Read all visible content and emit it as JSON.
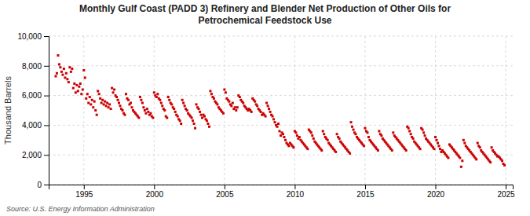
{
  "chart_data": {
    "type": "scatter",
    "title": "Monthly Gulf Coast (PADD 3) Refinery and Blender Net Production of Other Oils for\nPetrochemical Feedstock Use",
    "y_label": "Thousand Barrels",
    "annotations": [
      "Source: U.S. Energy Information Administration"
    ],
    "color": "#cc0000",
    "marker": "square",
    "grid": true,
    "xlim": [
      1992.5,
      2025.5
    ],
    "ylim": [
      0,
      10000
    ],
    "xticks": [
      1995,
      2000,
      2005,
      2010,
      2015,
      2020,
      2025
    ],
    "yticks": [
      0,
      {
        "value": 2000,
        "label": "2,000"
      },
      {
        "value": 4000,
        "label": "4,000"
      },
      {
        "value": 6000,
        "label": "6,000"
      },
      {
        "value": 8000,
        "label": "8,000"
      },
      {
        "value": 10000,
        "label": "10,000"
      }
    ],
    "x": [
      1993.0,
      1993.083,
      1993.167,
      1993.25,
      1993.333,
      1993.417,
      1993.5,
      1993.583,
      1993.667,
      1993.75,
      1993.833,
      1993.917,
      1994.0,
      1994.083,
      1994.167,
      1994.25,
      1994.333,
      1994.417,
      1994.5,
      1994.583,
      1994.667,
      1994.75,
      1994.833,
      1994.917,
      1995.0,
      1995.083,
      1995.167,
      1995.25,
      1995.333,
      1995.417,
      1995.5,
      1995.583,
      1995.667,
      1995.75,
      1995.833,
      1995.917,
      1996.0,
      1996.083,
      1996.167,
      1996.25,
      1996.333,
      1996.417,
      1996.5,
      1996.583,
      1996.667,
      1996.75,
      1996.833,
      1996.917,
      1997.0,
      1997.083,
      1997.167,
      1997.25,
      1997.333,
      1997.417,
      1997.5,
      1997.583,
      1997.667,
      1997.75,
      1997.833,
      1997.917,
      1998.0,
      1998.083,
      1998.167,
      1998.25,
      1998.333,
      1998.417,
      1998.5,
      1998.583,
      1998.667,
      1998.75,
      1998.833,
      1998.917,
      1999.0,
      1999.083,
      1999.167,
      1999.25,
      1999.333,
      1999.417,
      1999.5,
      1999.583,
      1999.667,
      1999.75,
      1999.833,
      1999.917,
      2000.0,
      2000.083,
      2000.167,
      2000.25,
      2000.333,
      2000.417,
      2000.5,
      2000.583,
      2000.667,
      2000.75,
      2000.833,
      2000.917,
      2001.0,
      2001.083,
      2001.167,
      2001.25,
      2001.333,
      2001.417,
      2001.5,
      2001.583,
      2001.667,
      2001.75,
      2001.833,
      2001.917,
      2002.0,
      2002.083,
      2002.167,
      2002.25,
      2002.333,
      2002.417,
      2002.5,
      2002.583,
      2002.667,
      2002.75,
      2002.833,
      2002.917,
      2003.0,
      2003.083,
      2003.167,
      2003.25,
      2003.333,
      2003.417,
      2003.5,
      2003.583,
      2003.667,
      2003.75,
      2003.833,
      2003.917,
      2004.0,
      2004.083,
      2004.167,
      2004.25,
      2004.333,
      2004.417,
      2004.5,
      2004.583,
      2004.667,
      2004.75,
      2004.833,
      2004.917,
      2005.0,
      2005.083,
      2005.167,
      2005.25,
      2005.333,
      2005.417,
      2005.5,
      2005.583,
      2005.667,
      2005.75,
      2005.833,
      2005.917,
      2006.0,
      2006.083,
      2006.167,
      2006.25,
      2006.333,
      2006.417,
      2006.5,
      2006.583,
      2006.667,
      2006.75,
      2006.833,
      2006.917,
      2007.0,
      2007.083,
      2007.167,
      2007.25,
      2007.333,
      2007.417,
      2007.5,
      2007.583,
      2007.667,
      2007.75,
      2007.833,
      2007.917,
      2008.0,
      2008.083,
      2008.167,
      2008.25,
      2008.333,
      2008.417,
      2008.5,
      2008.583,
      2008.667,
      2008.75,
      2008.833,
      2008.917,
      2009.0,
      2009.083,
      2009.167,
      2009.25,
      2009.333,
      2009.417,
      2009.5,
      2009.583,
      2009.667,
      2009.75,
      2009.833,
      2009.917,
      2010.0,
      2010.083,
      2010.167,
      2010.25,
      2010.333,
      2010.417,
      2010.5,
      2010.583,
      2010.667,
      2010.75,
      2010.833,
      2010.917,
      2011.0,
      2011.083,
      2011.167,
      2011.25,
      2011.333,
      2011.417,
      2011.5,
      2011.583,
      2011.667,
      2011.75,
      2011.833,
      2011.917,
      2012.0,
      2012.083,
      2012.167,
      2012.25,
      2012.333,
      2012.417,
      2012.5,
      2012.583,
      2012.667,
      2012.75,
      2012.833,
      2012.917,
      2013.0,
      2013.083,
      2013.167,
      2013.25,
      2013.333,
      2013.417,
      2013.5,
      2013.583,
      2013.667,
      2013.75,
      2013.833,
      2013.917,
      2014.0,
      2014.083,
      2014.167,
      2014.25,
      2014.333,
      2014.417,
      2014.5,
      2014.583,
      2014.667,
      2014.75,
      2014.833,
      2014.917,
      2015.0,
      2015.083,
      2015.167,
      2015.25,
      2015.333,
      2015.417,
      2015.5,
      2015.583,
      2015.667,
      2015.75,
      2015.833,
      2015.917,
      2016.0,
      2016.083,
      2016.167,
      2016.25,
      2016.333,
      2016.417,
      2016.5,
      2016.583,
      2016.667,
      2016.75,
      2016.833,
      2016.917,
      2017.0,
      2017.083,
      2017.167,
      2017.25,
      2017.333,
      2017.417,
      2017.5,
      2017.583,
      2017.667,
      2017.75,
      2017.833,
      2017.917,
      2018.0,
      2018.083,
      2018.167,
      2018.25,
      2018.333,
      2018.417,
      2018.5,
      2018.583,
      2018.667,
      2018.75,
      2018.833,
      2018.917,
      2019.0,
      2019.083,
      2019.167,
      2019.25,
      2019.333,
      2019.417,
      2019.5,
      2019.583,
      2019.667,
      2019.75,
      2019.833,
      2019.917,
      2020.0,
      2020.083,
      2020.167,
      2020.25,
      2020.333,
      2020.417,
      2020.5,
      2020.583,
      2020.667,
      2020.75,
      2020.833,
      2020.917,
      2021.0,
      2021.083,
      2021.167,
      2021.25,
      2021.333,
      2021.417,
      2021.5,
      2021.583,
      2021.667,
      2021.75,
      2021.833,
      2021.917,
      2022.0,
      2022.083,
      2022.167,
      2022.25,
      2022.333,
      2022.417,
      2022.5,
      2022.583,
      2022.667,
      2022.75,
      2022.833,
      2022.917,
      2023.0,
      2023.083,
      2023.167,
      2023.25,
      2023.333,
      2023.417,
      2023.5,
      2023.583,
      2023.667,
      2023.75,
      2023.833,
      2023.917,
      2024.0,
      2024.083,
      2024.167,
      2024.25,
      2024.333,
      2024.417,
      2024.5,
      2024.583,
      2024.667,
      2024.75,
      2024.833,
      2024.917
    ],
    "values": [
      7300,
      7500,
      8700,
      8100,
      7900,
      7600,
      7400,
      7800,
      7200,
      7500,
      7100,
      6900,
      7900,
      7600,
      7800,
      6500,
      6800,
      6200,
      6700,
      6300,
      6600,
      6800,
      6100,
      6400,
      7700,
      7200,
      5800,
      6100,
      5500,
      5900,
      5400,
      5700,
      5200,
      5600,
      5000,
      4700,
      6300,
      6100,
      5800,
      5500,
      5700,
      5400,
      5600,
      5300,
      5500,
      5200,
      5400,
      5100,
      6500,
      6200,
      6400,
      6000,
      5900,
      5700,
      5500,
      5300,
      5100,
      5000,
      4800,
      4700,
      6100,
      5800,
      5700,
      5400,
      5500,
      5200,
      5000,
      4900,
      4800,
      4700,
      4600,
      4500,
      5900,
      5700,
      5500,
      5200,
      5000,
      4800,
      5100,
      4900,
      4700,
      4800,
      4600,
      4500,
      6200,
      6000,
      5900,
      6100,
      5800,
      5700,
      5500,
      5300,
      5100,
      5000,
      4600,
      4500,
      5900,
      5700,
      5500,
      5400,
      5200,
      5100,
      4900,
      4700,
      4600,
      4400,
      4300,
      4100,
      5700,
      5500,
      5300,
      5100,
      5000,
      4800,
      4700,
      4600,
      4500,
      4300,
      4100,
      3800,
      5400,
      5200,
      5100,
      4900,
      4700,
      4500,
      4700,
      4600,
      4400,
      4300,
      4100,
      3900,
      6300,
      6100,
      5900,
      5800,
      5600,
      5500,
      5400,
      5200,
      5100,
      5000,
      4900,
      4800,
      6400,
      6200,
      5800,
      5700,
      5600,
      5400,
      5300,
      5500,
      5100,
      5200,
      5000,
      5200,
      6000,
      5900,
      5700,
      5600,
      5500,
      5300,
      5200,
      5100,
      5000,
      5100,
      5000,
      4900,
      5800,
      5700,
      5600,
      5400,
      5300,
      5100,
      5000,
      4900,
      4700,
      4800,
      4700,
      4600,
      5500,
      5300,
      5100,
      4900,
      4700,
      4600,
      4400,
      4200,
      4000,
      3900,
      4100,
      3600,
      3300,
      3500,
      3400,
      3200,
      3000,
      2800,
      2700,
      2600,
      2800,
      2700,
      2600,
      2500,
      3600,
      3500,
      3300,
      3100,
      3200,
      3000,
      2900,
      2800,
      2700,
      2600,
      2500,
      2400,
      3700,
      3600,
      3500,
      3300,
      3100,
      2900,
      2800,
      2700,
      2600,
      2500,
      2400,
      2300,
      3600,
      3400,
      3200,
      3100,
      3000,
      2800,
      2700,
      2600,
      2500,
      2400,
      2300,
      2200,
      3400,
      3200,
      3100,
      2900,
      2800,
      2700,
      2600,
      2500,
      2400,
      2300,
      2200,
      2100,
      4200,
      3900,
      3700,
      3500,
      3400,
      3200,
      3100,
      3000,
      2900,
      2800,
      2700,
      2600,
      3800,
      3600,
      3500,
      3200,
      3000,
      2900,
      2800,
      2700,
      2600,
      2500,
      2400,
      2300,
      3600,
      3400,
      3300,
      3100,
      3000,
      2900,
      2800,
      2700,
      2600,
      2500,
      2400,
      2300,
      3500,
      3300,
      3200,
      3100,
      3000,
      2900,
      2800,
      2700,
      2600,
      2500,
      2400,
      2300,
      3900,
      3800,
      3600,
      3400,
      3200,
      3100,
      2900,
      2800,
      2700,
      2600,
      2500,
      2400,
      3800,
      3700,
      3500,
      3300,
      3100,
      3000,
      2900,
      2800,
      2700,
      2600,
      2500,
      2400,
      3200,
      3000,
      2800,
      2600,
      2400,
      2200,
      2300,
      2200,
      2100,
      2000,
      1900,
      1800,
      2700,
      2600,
      2500,
      2400,
      2300,
      2200,
      2100,
      2000,
      1900,
      1800,
      1200,
      1600,
      3000,
      2800,
      2600,
      2500,
      2400,
      2300,
      2200,
      2100,
      2000,
      1900,
      1800,
      1700,
      2800,
      2600,
      2500,
      2300,
      2200,
      2100,
      2000,
      1900,
      1800,
      1700,
      1600,
      1500,
      2500,
      2300,
      2200,
      2100,
      2000,
      1900,
      1900,
      1800,
      1700,
      1600,
      1400,
      1300
    ]
  }
}
